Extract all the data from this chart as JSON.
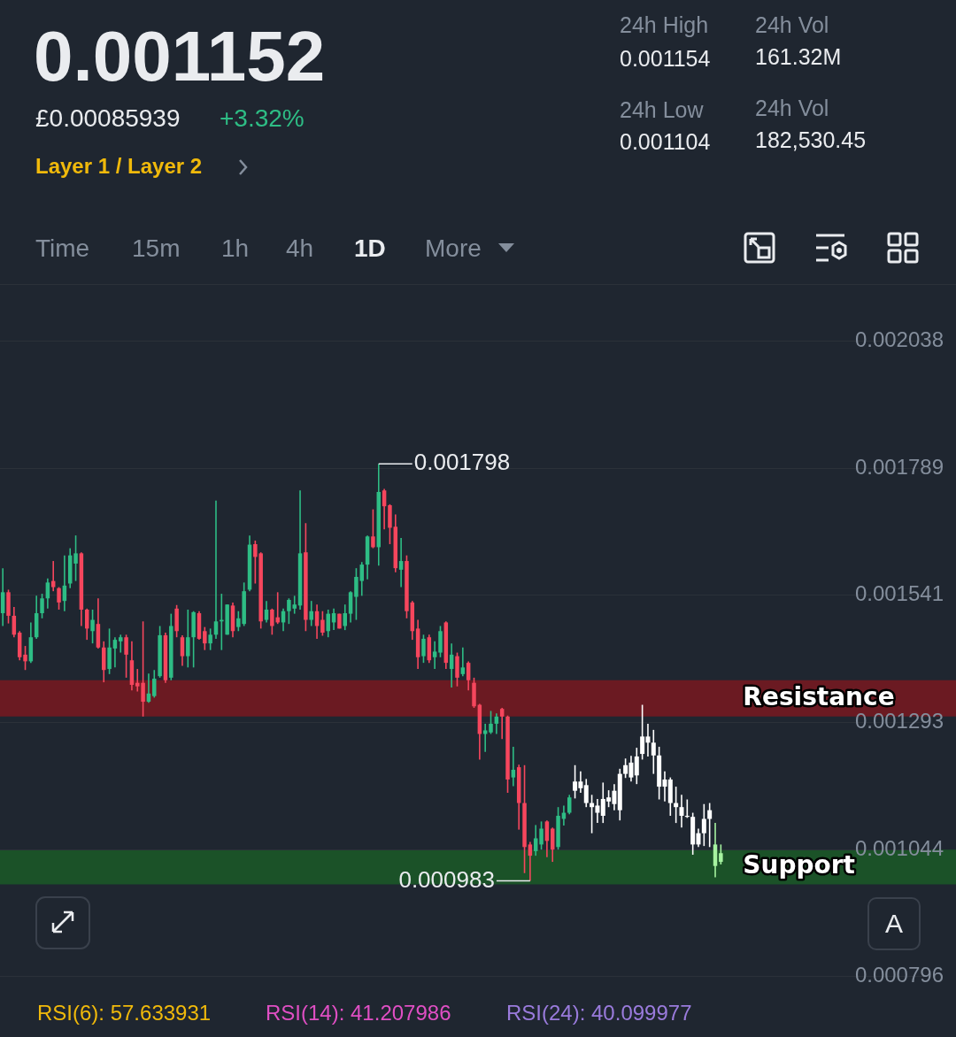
{
  "chart_data": {
    "type": "candlestick",
    "title": "0.001152",
    "categories": [
      null,
      null,
      null,
      null,
      null,
      null,
      null,
      null,
      null,
      null,
      null,
      null,
      null,
      null,
      null,
      null,
      null,
      null,
      null,
      null,
      null,
      null,
      null,
      null,
      null,
      null,
      null,
      null,
      null,
      null,
      null,
      null,
      null,
      null,
      null,
      null,
      null,
      null,
      null,
      null,
      null,
      null,
      null,
      null,
      null,
      null,
      null,
      null,
      null,
      null,
      null,
      null,
      null,
      null,
      null,
      null,
      null,
      null,
      null,
      null,
      null,
      null,
      null,
      null,
      null,
      null,
      null,
      null,
      null,
      null,
      null,
      null,
      null,
      null,
      null,
      null,
      null,
      null,
      null,
      null,
      null,
      null,
      null,
      null,
      null,
      null,
      null,
      null,
      null,
      null,
      null,
      null,
      null,
      null,
      null,
      null,
      null,
      null,
      null,
      null,
      null,
      null,
      null,
      null,
      null,
      null,
      null,
      null,
      null,
      null,
      null,
      null,
      null,
      null,
      null,
      null,
      null,
      null,
      null,
      null,
      null,
      null,
      null,
      null,
      null,
      null,
      null,
      null,
      null,
      null,
      null,
      null,
      null,
      null,
      null,
      null,
      null,
      null,
      null,
      null,
      null,
      null,
      null,
      null,
      null,
      null,
      null,
      null,
      null,
      null,
      null,
      null,
      null,
      null,
      null,
      null,
      null,
      null,
      null,
      null,
      null,
      null,
      null,
      null,
      null,
      null
    ],
    "ohlc": [
      [
        0.001506,
        0.001594,
        0.001481,
        0.001547
      ],
      [
        0.001547,
        0.001552,
        0.001486,
        0.001501
      ],
      [
        0.001501,
        0.001518,
        0.001459,
        0.001464
      ],
      [
        0.001468,
        0.001471,
        0.001414,
        0.00142
      ],
      [
        0.001425,
        0.001442,
        0.001395,
        0.001412
      ],
      [
        0.001412,
        0.001488,
        0.001409,
        0.001459
      ],
      [
        0.001459,
        0.00154,
        0.001456,
        0.001506
      ],
      [
        0.001506,
        0.001544,
        0.001496,
        0.001535
      ],
      [
        0.001535,
        0.001574,
        0.001515,
        0.001566
      ],
      [
        0.001569,
        0.001608,
        0.001549,
        0.001557
      ],
      [
        0.001555,
        0.001557,
        0.001513,
        0.001527
      ],
      [
        0.00153,
        0.001619,
        0.00151,
        0.00156
      ],
      [
        0.001564,
        0.001633,
        0.001555,
        0.001619
      ],
      [
        0.001603,
        0.001658,
        0.001569,
        0.001623
      ],
      [
        0.001623,
        0.001625,
        0.001481,
        0.001513
      ],
      [
        0.001513,
        0.001515,
        0.001454,
        0.001476
      ],
      [
        0.001471,
        0.001513,
        0.001447,
        0.001493
      ],
      [
        0.001485,
        0.001535,
        0.001437,
        0.001439
      ],
      [
        0.001439,
        0.001451,
        0.001371,
        0.001395
      ],
      [
        0.001397,
        0.001476,
        0.001387,
        0.001439
      ],
      [
        0.001437,
        0.001459,
        0.0014,
        0.001454
      ],
      [
        0.001451,
        0.001464,
        0.001429,
        0.001459
      ],
      [
        0.001459,
        0.001464,
        0.00138,
        0.001425
      ],
      [
        0.001414,
        0.001451,
        0.001355,
        0.001366
      ],
      [
        0.00137,
        0.001397,
        0.001353,
        0.001363
      ],
      [
        0.00137,
        0.00149,
        0.001304,
        0.001333
      ],
      [
        0.001333,
        0.001388,
        0.001331,
        0.001349
      ],
      [
        0.001344,
        0.001395,
        0.001341,
        0.001378
      ],
      [
        0.001383,
        0.001481,
        0.00138,
        0.001463
      ],
      [
        0.001463,
        0.001468,
        0.00137,
        0.001375
      ],
      [
        0.00138,
        0.001505,
        0.001375,
        0.001481
      ],
      [
        0.001515,
        0.001522,
        0.001459,
        0.001471
      ],
      [
        0.001459,
        0.001463,
        0.001403,
        0.001422
      ],
      [
        0.001422,
        0.001513,
        0.0014,
        0.001459
      ],
      [
        0.001459,
        0.00151,
        0.0014,
        0.001508
      ],
      [
        0.001506,
        0.00151,
        0.001454,
        0.001456
      ],
      [
        0.001471,
        0.001479,
        0.001434,
        0.001447
      ],
      [
        0.001447,
        0.001476,
        0.001434,
        0.001464
      ],
      [
        0.001464,
        0.001726,
        0.001456,
        0.00149
      ],
      [
        0.00149,
        0.001544,
        0.001434,
        0.001493
      ],
      [
        0.001464,
        0.001523,
        0.001464,
        0.001523
      ],
      [
        0.001521,
        0.001527,
        0.001459,
        0.001471
      ],
      [
        0.001479,
        0.00151,
        0.001471,
        0.001496
      ],
      [
        0.001485,
        0.001566,
        0.001481,
        0.001549
      ],
      [
        0.001552,
        0.001658,
        0.001549,
        0.00164
      ],
      [
        0.001641,
        0.001648,
        0.001564,
        0.001616
      ],
      [
        0.001623,
        0.001625,
        0.001476,
        0.00149
      ],
      [
        0.001493,
        0.00153,
        0.001488,
        0.001513
      ],
      [
        0.001513,
        0.001515,
        0.001464,
        0.001481
      ],
      [
        0.001498,
        0.001547,
        0.001485,
        0.001488
      ],
      [
        0.001488,
        0.001515,
        0.001471,
        0.00151
      ],
      [
        0.00151,
        0.001535,
        0.001485,
        0.001532
      ],
      [
        0.001515,
        0.00154,
        0.001505,
        0.001523
      ],
      [
        0.001521,
        0.001746,
        0.001513,
        0.001623
      ],
      [
        0.001625,
        0.001682,
        0.001471,
        0.001493
      ],
      [
        0.001493,
        0.00153,
        0.001481,
        0.00151
      ],
      [
        0.00151,
        0.001523,
        0.001456,
        0.001481
      ],
      [
        0.001493,
        0.00151,
        0.001462,
        0.001468
      ],
      [
        0.001471,
        0.001513,
        0.001459,
        0.001505
      ],
      [
        0.001488,
        0.001515,
        0.001473,
        0.001506
      ],
      [
        0.001505,
        0.001505,
        0.001476,
        0.001476
      ],
      [
        0.001481,
        0.001523,
        0.001473,
        0.001506
      ],
      [
        0.001505,
        0.001549,
        0.001488,
        0.001547
      ],
      [
        0.001538,
        0.001594,
        0.001493,
        0.001577
      ],
      [
        0.001569,
        0.001606,
        0.00154,
        0.001601
      ],
      [
        0.001601,
        0.001658,
        0.001572,
        0.001656
      ],
      [
        0.001656,
        0.001709,
        0.001633,
        0.001635
      ],
      [
        0.001635,
        0.001798,
        0.001599,
        0.001743
      ],
      [
        0.001746,
        0.001749,
        0.00167,
        0.001715
      ],
      [
        0.001717,
        0.001719,
        0.001641,
        0.001673
      ],
      [
        0.001675,
        0.001699,
        0.001586,
        0.001594
      ],
      [
        0.001591,
        0.001653,
        0.001557,
        0.001608
      ],
      [
        0.001608,
        0.001619,
        0.001496,
        0.00151
      ],
      [
        0.001527,
        0.00153,
        0.001454,
        0.001471
      ],
      [
        0.001476,
        0.001493,
        0.001397,
        0.00142
      ],
      [
        0.001422,
        0.001464,
        0.001409,
        0.001456
      ],
      [
        0.001459,
        0.001464,
        0.001409,
        0.001414
      ],
      [
        0.00142,
        0.001451,
        0.001397,
        0.001431
      ],
      [
        0.001429,
        0.001481,
        0.00142,
        0.001471
      ],
      [
        0.001488,
        0.00149,
        0.001397,
        0.001409
      ],
      [
        0.001397,
        0.001447,
        0.001361,
        0.001425
      ],
      [
        0.001422,
        0.001429,
        0.001363,
        0.00138
      ],
      [
        0.001387,
        0.001439,
        0.001383,
        0.0014
      ],
      [
        0.001409,
        0.001412,
        0.001355,
        0.001375
      ],
      [
        0.00137,
        0.00138,
        0.001321,
        0.001324
      ],
      [
        0.001327,
        0.001329,
        0.00122,
        0.00127
      ],
      [
        0.00127,
        0.00129,
        0.001235,
        0.001277
      ],
      [
        0.001273,
        0.001315,
        0.00127,
        0.00129
      ],
      [
        0.00129,
        0.00131,
        0.00127,
        0.001304
      ],
      [
        0.001319,
        0.001321,
        0.00126,
        0.001304
      ],
      [
        0.001304,
        0.001306,
        0.001155,
        0.001181
      ],
      [
        0.001185,
        0.001245,
        0.001168,
        0.0012
      ],
      [
        0.001205,
        0.00121,
        0.001083,
        0.001135
      ],
      [
        0.001135,
        0.001209,
        0.000998,
        0.001049
      ],
      [
        0.001054,
        0.001059,
        0.000983,
        0.001032
      ],
      [
        0.001041,
        0.001092,
        0.001032,
        0.001066
      ],
      [
        0.001054,
        0.001099,
        0.001044,
        0.001085
      ],
      [
        0.001099,
        0.001101,
        0.001029,
        0.001061
      ],
      [
        0.001085,
        0.001087,
        0.00102,
        0.001044
      ],
      [
        0.001049,
        0.001127,
        0.001044,
        0.00111
      ],
      [
        0.001104,
        0.00113,
        0.001091,
        0.001116
      ],
      [
        0.001116,
        0.001151,
        0.001113,
        0.001146
      ],
      [
        0.001159,
        0.001209,
        0.001144,
        0.001177
      ],
      [
        0.001164,
        0.001197,
        0.001155,
        0.001177
      ],
      [
        0.00117,
        0.001182,
        0.001127,
        0.001135
      ],
      [
        0.001135,
        0.001151,
        0.001076,
        0.001127
      ],
      [
        0.001116,
        0.001143,
        0.001096,
        0.00113
      ],
      [
        0.00111,
        0.001175,
        0.001096,
        0.001143
      ],
      [
        0.001138,
        0.00116,
        0.001127,
        0.001146
      ],
      [
        0.001133,
        0.001172,
        0.001121,
        0.001159
      ],
      [
        0.001121,
        0.001202,
        0.001101,
        0.001192
      ],
      [
        0.001192,
        0.001222,
        0.001184,
        0.001209
      ],
      [
        0.001185,
        0.001227,
        0.001177,
        0.001214
      ],
      [
        0.001189,
        0.001243,
        0.001172,
        0.001226
      ],
      [
        0.001231,
        0.001327,
        0.00122,
        0.001265
      ],
      [
        0.001265,
        0.00129,
        0.001226,
        0.001253
      ],
      [
        0.001253,
        0.001278,
        0.001192,
        0.001228
      ],
      [
        0.001228,
        0.001245,
        0.001142,
        0.001167
      ],
      [
        0.001167,
        0.001197,
        0.001138,
        0.001181
      ],
      [
        0.001181,
        0.001185,
        0.00111,
        0.001135
      ],
      [
        0.001135,
        0.001167,
        0.001096,
        0.001127
      ],
      [
        0.001127,
        0.001151,
        0.001087,
        0.00111
      ],
      [
        0.00111,
        0.001142,
        0.001106,
        0.001108
      ],
      [
        0.001108,
        0.001116,
        0.001034,
        0.001054
      ],
      [
        0.001054,
        0.001085,
        0.001049,
        0.001076
      ],
      [
        0.001076,
        0.001133,
        0.001051,
        0.001104
      ],
      [
        0.001104,
        0.001135,
        0.001049,
        0.001121
      ],
      [
        0.001054,
        0.001096,
        0.00099,
        0.001012
      ],
      [
        0.00102,
        0.001054,
        0.001015,
        0.001037
      ],
      null,
      null,
      null,
      null,
      null,
      null,
      null,
      null,
      null,
      null,
      null,
      null,
      null,
      null,
      null,
      null,
      null,
      null,
      null,
      null,
      null,
      null,
      null,
      null,
      null,
      null,
      null,
      null,
      null,
      null,
      null,
      null,
      null,
      null,
      null,
      null,
      null
    ],
    "colors": [
      "#2ebd85",
      "#f6465d",
      "#f6465d",
      "#f6465d",
      "#f6465d",
      "#2ebd85",
      "#2ebd85",
      "#2ebd85",
      "#2ebd85",
      "#f6465d",
      "#f6465d",
      "#2ebd85",
      "#2ebd85",
      "#2ebd85",
      "#f6465d",
      "#f6465d",
      "#2ebd85",
      "#f6465d",
      "#f6465d",
      "#2ebd85",
      "#2ebd85",
      "#2ebd85",
      "#f6465d",
      "#f6465d",
      "#f6465d",
      "#f6465d",
      "#2ebd85",
      "#2ebd85",
      "#2ebd85",
      "#f6465d",
      "#2ebd85",
      "#f6465d",
      "#f6465d",
      "#2ebd85",
      "#2ebd85",
      "#f6465d",
      "#f6465d",
      "#2ebd85",
      "#2ebd85",
      "#2ebd85",
      "#2ebd85",
      "#f6465d",
      "#2ebd85",
      "#2ebd85",
      "#2ebd85",
      "#f6465d",
      "#f6465d",
      "#2ebd85",
      "#f6465d",
      "#f6465d",
      "#2ebd85",
      "#2ebd85",
      "#2ebd85",
      "#2ebd85",
      "#f6465d",
      "#2ebd85",
      "#f6465d",
      "#f6465d",
      "#2ebd85",
      "#2ebd85",
      "#f6465d",
      "#2ebd85",
      "#2ebd85",
      "#2ebd85",
      "#2ebd85",
      "#2ebd85",
      "#f6465d",
      "#2ebd85",
      "#f6465d",
      "#f6465d",
      "#f6465d",
      "#2ebd85",
      "#f6465d",
      "#f6465d",
      "#f6465d",
      "#2ebd85",
      "#f6465d",
      "#2ebd85",
      "#2ebd85",
      "#f6465d",
      "#2ebd85",
      "#f6465d",
      "#2ebd85",
      "#f6465d",
      "#f6465d",
      "#f6465d",
      "#2ebd85",
      "#2ebd85",
      "#2ebd85",
      "#f6465d",
      "#f6465d",
      "#2ebd85",
      "#f6465d",
      "#f6465d",
      "#f6465d",
      "#2ebd85",
      "#2ebd85",
      "#f6465d",
      "#f6465d",
      "#2ebd85",
      "#2ebd85",
      "#2ebd85",
      "#ffffff",
      "#ffffff",
      "#ffffff",
      "#ffffff",
      "#ffffff",
      "#ffffff",
      "#ffffff",
      "#ffffff",
      "#ffffff",
      "#ffffff",
      "#ffffff",
      "#ffffff",
      "#ffffff",
      "#ffffff",
      "#ffffff",
      "#ffffff",
      "#ffffff",
      "#ffffff",
      "#ffffff",
      "#ffffff",
      "#ffffff",
      "#ffffff",
      "#ffffff",
      "#ffffff",
      "#ffffff",
      "#a6f3a0",
      "#a6f3a0",
      null,
      null,
      null,
      null,
      null,
      null,
      null,
      null,
      null,
      null,
      null,
      null,
      null,
      null,
      null,
      null,
      null,
      null,
      null,
      null,
      null,
      null,
      null,
      null,
      null,
      null,
      null,
      null,
      null,
      null,
      null,
      null,
      null,
      null,
      null,
      null,
      null
    ],
    "ylim": [
      0.000796,
      0.002038
    ],
    "yticks": [
      0.000796,
      0.001044,
      0.001293,
      0.001541,
      0.001789,
      0.002038
    ],
    "grid": "y",
    "tick_labels": "y",
    "bands": [
      {
        "axis": "y",
        "from": 0.001304,
        "to": 0.001375,
        "label": "Resistance",
        "color": "#6b1a22"
      },
      {
        "axis": "y",
        "from": 0.000976,
        "to": 0.001044,
        "label": "Support",
        "color": "#1b5228"
      }
    ],
    "annotations": [
      "£0.00085939",
      "+3.32%",
      "Layer 1 / Layer 2",
      "24h High",
      "0.001154",
      "24h Vol",
      "161.32M",
      "24h Low",
      "0.001104",
      "24h Vol",
      "182,530.45",
      "Time",
      "15m",
      "1h",
      "4h",
      "1D",
      "More",
      "A",
      "RSI(6): 57.633931",
      "RSI(14): 41.207986",
      "RSI(24): 40.099977",
      "0.001798",
      {
        "text": "0.000983",
        "y": 0.000983
      }
    ]
  }
}
